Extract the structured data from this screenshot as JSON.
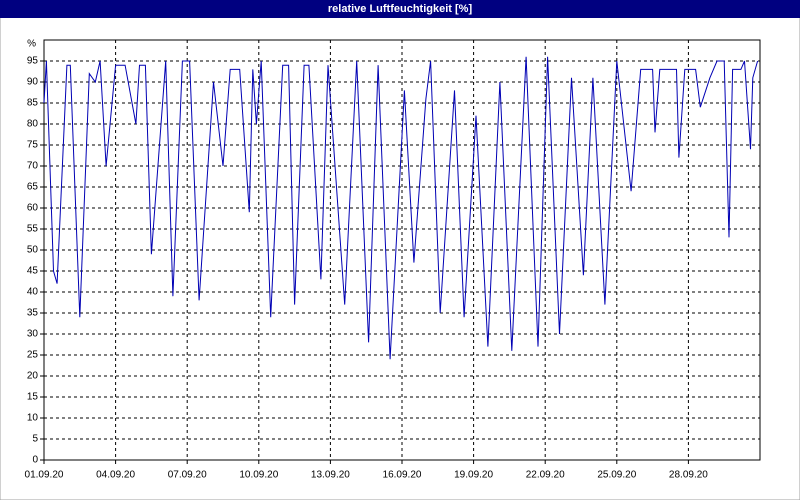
{
  "chart_data": {
    "type": "line",
    "title": "relative Luftfeuchtigkeit [%]",
    "y_label": "%",
    "color": "#0000b4",
    "x": [
      0,
      0.1,
      0.4,
      0.55,
      0.96,
      1.1,
      1.5,
      1.9,
      2.15,
      2.35,
      2.6,
      3.0,
      3.4,
      3.85,
      4.0,
      4.25,
      4.5,
      5.1,
      5.4,
      5.8,
      6.1,
      6.5,
      7.1,
      7.5,
      7.8,
      8.2,
      8.6,
      8.75,
      8.9,
      9.1,
      9.5,
      10.0,
      10.25,
      10.5,
      10.9,
      11.1,
      11.6,
      11.9,
      12.6,
      13.1,
      13.6,
      14.0,
      14.5,
      15.1,
      15.5,
      16.0,
      16.2,
      16.6,
      17.2,
      17.6,
      18.1,
      18.6,
      19.1,
      19.6,
      20.2,
      20.7,
      21.1,
      21.6,
      22.1,
      22.6,
      23.0,
      23.5,
      24.0,
      24.6,
      25.0,
      25.5,
      25.6,
      25.8,
      26.5,
      26.6,
      26.85,
      27.3,
      27.5,
      27.9,
      28.2,
      28.5,
      28.7,
      28.85,
      29.2,
      29.35,
      29.6,
      29.7,
      29.9
    ],
    "values": [
      85,
      95,
      45,
      42,
      94,
      94,
      34,
      92,
      90,
      95,
      70,
      94,
      94,
      80,
      94,
      94,
      49,
      95,
      39,
      95,
      95,
      38,
      90,
      70,
      93,
      93,
      59,
      93,
      80,
      95,
      34,
      94,
      94,
      37,
      94,
      94,
      43,
      94,
      37,
      95,
      28,
      94,
      24,
      88,
      47,
      86,
      95,
      35,
      88,
      34,
      82,
      27,
      90,
      26,
      96,
      27,
      96,
      30,
      91,
      44,
      91,
      37,
      95,
      64,
      93,
      93,
      78,
      93,
      93,
      72,
      93,
      93,
      84,
      91,
      95,
      95,
      53,
      93,
      93,
      95,
      74,
      91,
      95
    ],
    "xlim": [
      0,
      30
    ],
    "xticks": [
      {
        "value": 0,
        "label": "01.09.20"
      },
      {
        "value": 3,
        "label": "04.09.20"
      },
      {
        "value": 6,
        "label": "07.09.20"
      },
      {
        "value": 9,
        "label": "10.09.20"
      },
      {
        "value": 12,
        "label": "13.09.20"
      },
      {
        "value": 15,
        "label": "16.09.20"
      },
      {
        "value": 18,
        "label": "19.09.20"
      },
      {
        "value": 21,
        "label": "22.09.20"
      },
      {
        "value": 24,
        "label": "25.09.20"
      },
      {
        "value": 27,
        "label": "28.09.20"
      }
    ],
    "ylim": [
      0,
      100
    ],
    "yticks": [
      0,
      5,
      10,
      15,
      20,
      25,
      30,
      35,
      40,
      45,
      50,
      55,
      60,
      65,
      70,
      75,
      80,
      85,
      90,
      95
    ],
    "grid": true
  }
}
